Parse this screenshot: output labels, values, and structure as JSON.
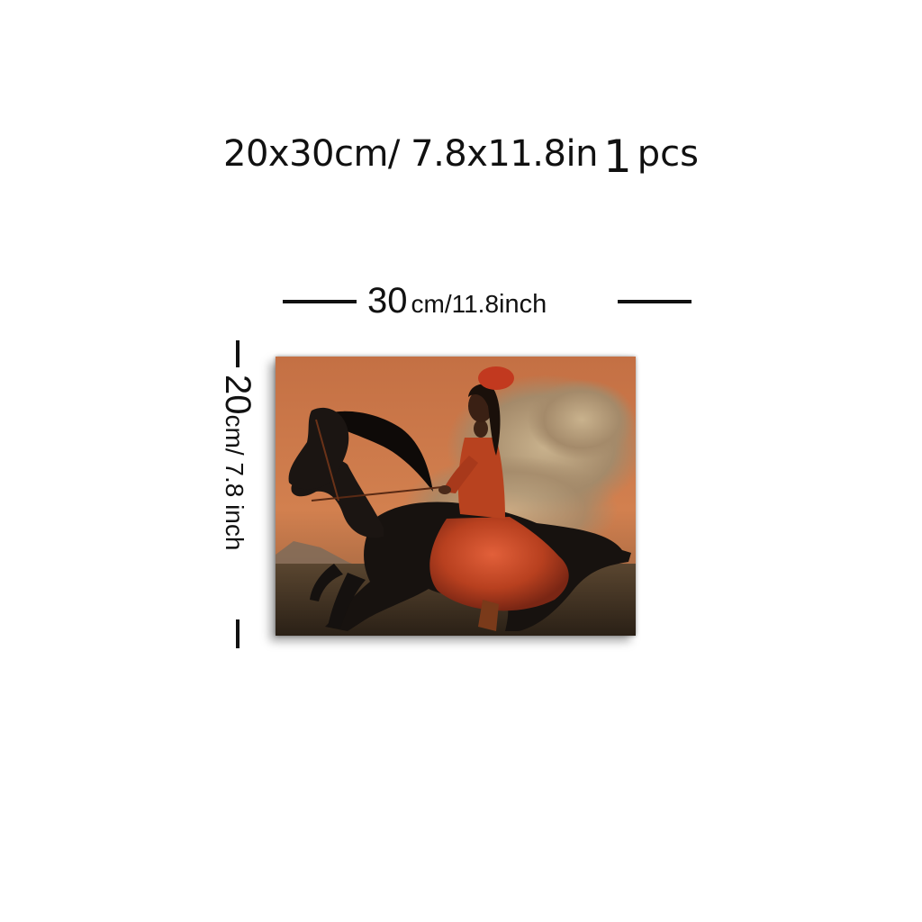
{
  "headline": {
    "dims": "20x30cm/ 7.8x11.8in",
    "qty": "1",
    "unit": "pcs"
  },
  "width_dimension": {
    "value": "30",
    "unit_text": "cm/11.8",
    "inch_text": " inch"
  },
  "height_dimension": {
    "value": "20",
    "unit_text": "cm/ 7.8 inch"
  },
  "painting": {
    "subject": "woman-in-red-dress-on-black-horse",
    "colors": {
      "sky": "#c9744a",
      "cloud": "#b8a282",
      "horse": "#15110f",
      "dress": "#c0452a",
      "ground": "#4a3a2a"
    }
  }
}
